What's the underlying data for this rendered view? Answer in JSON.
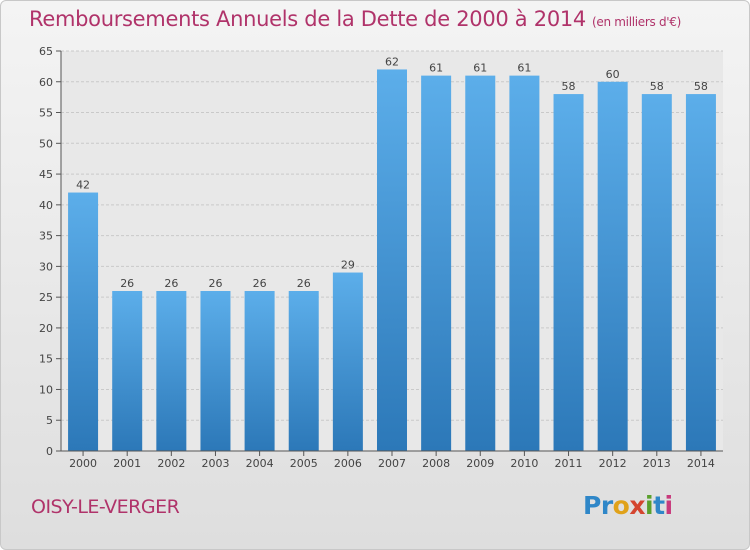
{
  "header": {
    "title": "Remboursements Annuels de la Dette de 2000 à 2014",
    "unit": "(en milliers d'€)"
  },
  "footer": {
    "city": "OISY-LE-VERGER",
    "logo": [
      "Pr",
      "o",
      "x",
      "i",
      "t",
      "i"
    ]
  },
  "chart_data": {
    "type": "bar",
    "title": "Remboursements Annuels de la Dette de 2000 à 2014",
    "xlabel": "",
    "ylabel": "",
    "ylim": [
      0,
      65
    ],
    "yticks": [
      0,
      5,
      10,
      15,
      20,
      25,
      30,
      35,
      40,
      45,
      50,
      55,
      60,
      65
    ],
    "grid": true,
    "categories": [
      "2000",
      "2001",
      "2002",
      "2003",
      "2004",
      "2005",
      "2006",
      "2007",
      "2008",
      "2009",
      "2010",
      "2011",
      "2012",
      "2013",
      "2014"
    ],
    "values": [
      42,
      26,
      26,
      26,
      26,
      26,
      29,
      62,
      61,
      61,
      61,
      58,
      60,
      58,
      58
    ],
    "bar_color": "#3b8fd6"
  }
}
